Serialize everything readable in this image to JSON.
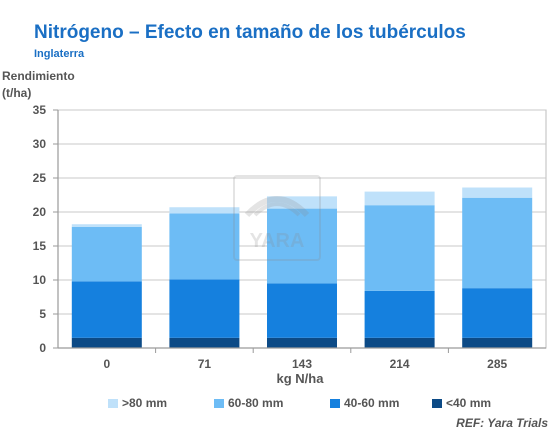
{
  "title": "Nitrógeno – Efecto en tamaño de los tubérculos",
  "subtitle": "Inglaterra",
  "reference": "REF: Yara Trials",
  "watermark_text": "YARA",
  "colors": {
    "title": "#1a6fc4",
    "lt40": "#0c4a86",
    "40to60": "#1580de",
    "60to80": "#6dbcf5",
    "gt80": "#bfe1fa",
    "axis": "#9a9a9a",
    "grid": "#c8c8c8",
    "plot_border": "#bdbdbd"
  },
  "chart_data": {
    "type": "bar",
    "stacked": true,
    "title": "Nitrógeno – Efecto en tamaño de los tubérculos",
    "subtitle": "Inglaterra",
    "ylabel_lines": [
      "Rendimiento",
      "(t/ha)"
    ],
    "xlabel": "kg N/ha",
    "ylim": [
      0,
      35
    ],
    "yticks": [
      0,
      5,
      10,
      15,
      20,
      25,
      30,
      35
    ],
    "grid": true,
    "legend_position": "bottom",
    "categories": [
      "0",
      "71",
      "143",
      "214",
      "285"
    ],
    "series": [
      {
        "name": "<40 mm",
        "color": "#0c4a86",
        "values": [
          1.5,
          1.5,
          1.5,
          1.5,
          1.5
        ]
      },
      {
        "name": "40-60 mm",
        "color": "#1580de",
        "values": [
          8.3,
          8.6,
          8.0,
          6.9,
          7.3
        ]
      },
      {
        "name": "60-80 mm",
        "color": "#6dbcf5",
        "values": [
          8.0,
          9.7,
          11.0,
          12.6,
          13.3
        ]
      },
      {
        "name": ">80 mm",
        "color": "#bfe1fa",
        "values": [
          0.4,
          0.9,
          1.8,
          2.0,
          1.5
        ]
      }
    ],
    "legend_order": [
      ">80 mm",
      "60-80 mm",
      "40-60 mm",
      "<40 mm"
    ]
  }
}
